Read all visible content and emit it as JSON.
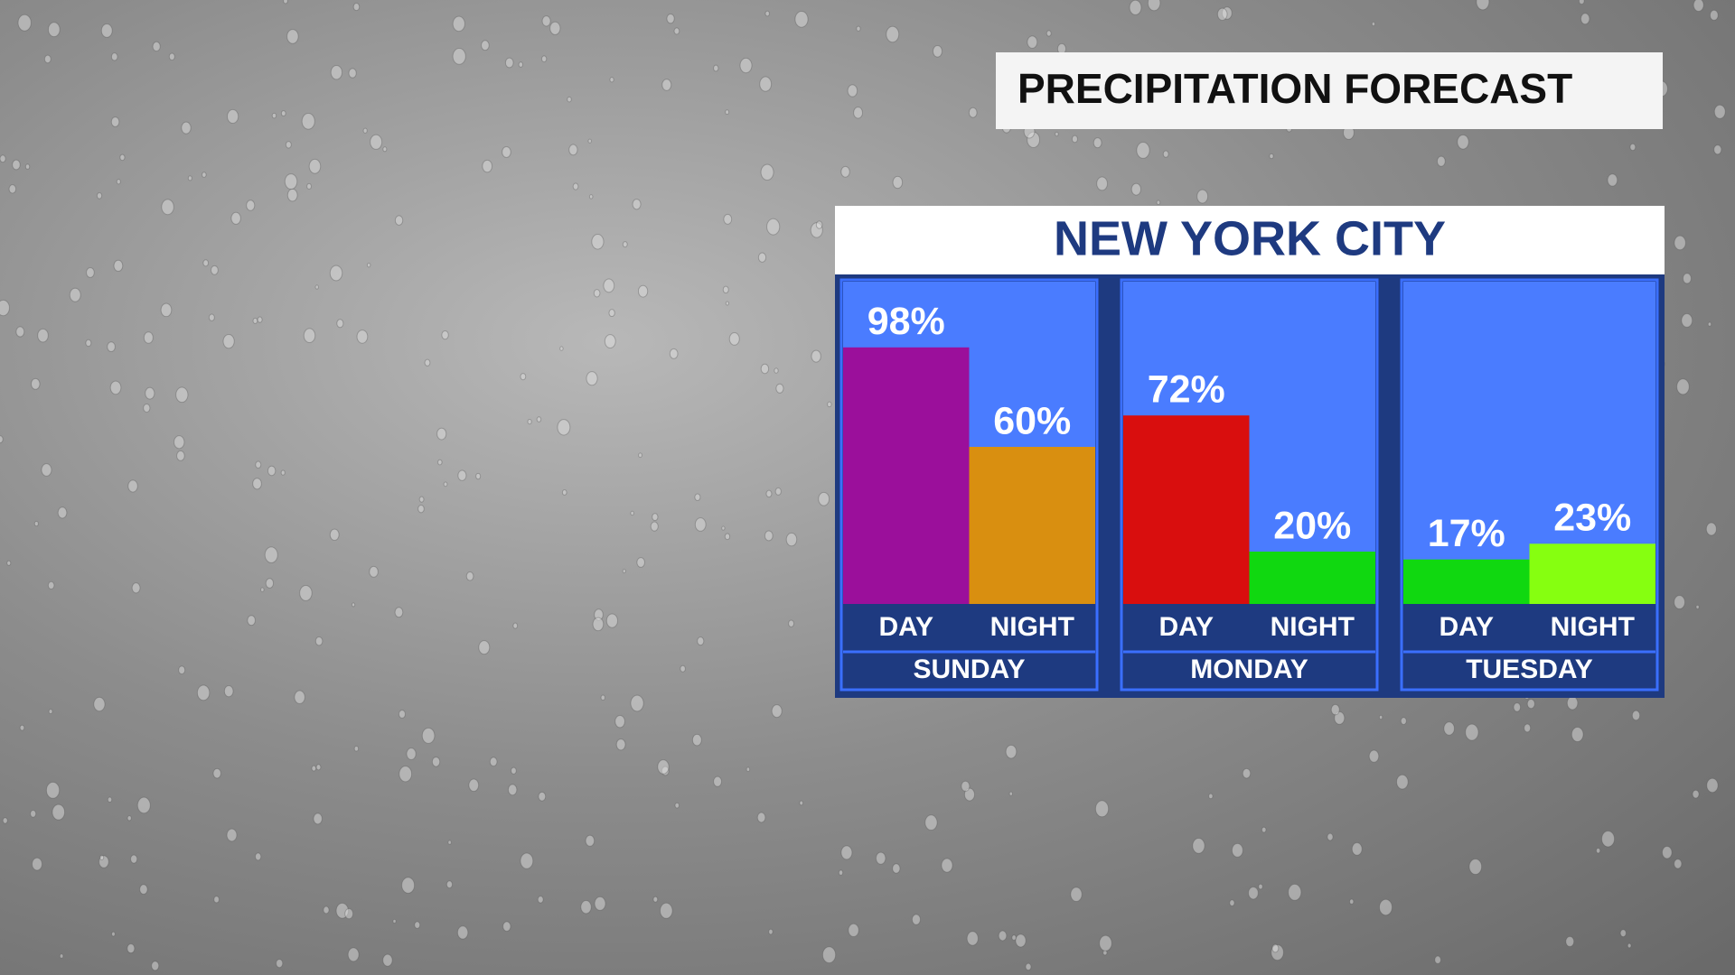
{
  "chart_data": {
    "type": "bar",
    "title": "PRECIPITATION FORECAST",
    "subtitle": "NEW YORK CITY",
    "groups": [
      {
        "name": "SUNDAY",
        "categories": [
          "DAY",
          "NIGHT"
        ],
        "values": [
          98,
          60
        ],
        "value_labels": [
          "98%",
          "60%"
        ],
        "colors": [
          "#9b0f9b",
          "#d98f10"
        ]
      },
      {
        "name": "MONDAY",
        "categories": [
          "DAY",
          "NIGHT"
        ],
        "values": [
          72,
          20
        ],
        "value_labels": [
          "72%",
          "20%"
        ],
        "colors": [
          "#d90e0e",
          "#10d810"
        ]
      },
      {
        "name": "TUESDAY",
        "categories": [
          "DAY",
          "NIGHT"
        ],
        "values": [
          17,
          23
        ],
        "value_labels": [
          "17%",
          "23%"
        ],
        "colors": [
          "#10d810",
          "#86ff10"
        ]
      }
    ]
  }
}
